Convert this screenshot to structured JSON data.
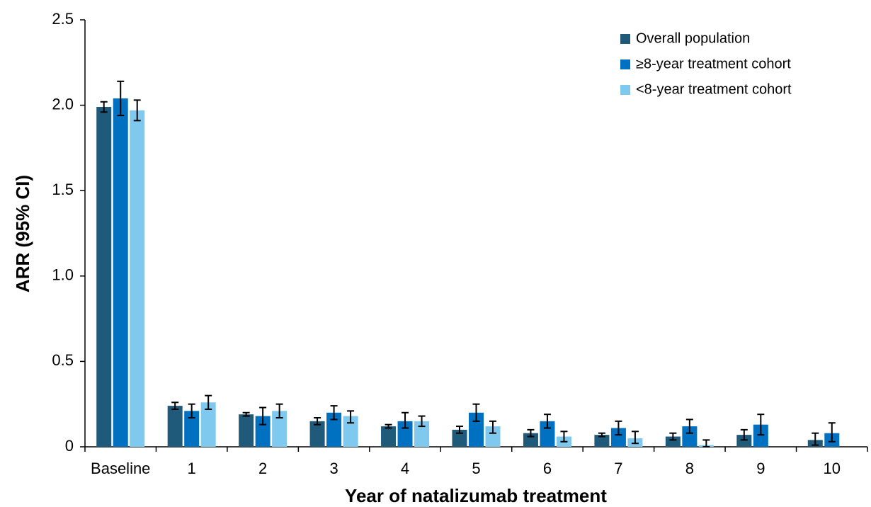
{
  "chart_data": {
    "type": "bar",
    "x_label": "Year of natalizumab treatment",
    "y_label": "ARR (95% CI)",
    "categories": [
      "Baseline",
      "1",
      "2",
      "3",
      "4",
      "5",
      "6",
      "7",
      "8",
      "9",
      "10"
    ],
    "series": [
      {
        "name": "Overall population",
        "color": "#1f5a7a",
        "values": [
          1.99,
          0.24,
          0.19,
          0.15,
          0.12,
          0.1,
          0.08,
          0.07,
          0.06,
          0.07,
          0.04
        ],
        "ci_low": [
          1.96,
          0.22,
          0.18,
          0.13,
          0.11,
          0.08,
          0.06,
          0.06,
          0.04,
          0.04,
          0.01
        ],
        "ci_high": [
          2.02,
          0.26,
          0.2,
          0.17,
          0.13,
          0.12,
          0.1,
          0.08,
          0.08,
          0.1,
          0.08
        ]
      },
      {
        "name": "≥8-year treatment cohort",
        "color": "#0070c0",
        "values": [
          2.04,
          0.21,
          0.18,
          0.2,
          0.15,
          0.2,
          0.15,
          0.11,
          0.12,
          0.13,
          0.08
        ],
        "ci_low": [
          1.94,
          0.17,
          0.13,
          0.16,
          0.11,
          0.15,
          0.11,
          0.07,
          0.08,
          0.07,
          0.03
        ],
        "ci_high": [
          2.14,
          0.25,
          0.23,
          0.24,
          0.2,
          0.25,
          0.19,
          0.15,
          0.16,
          0.19,
          0.14
        ]
      },
      {
        "name": "<8-year treatment cohort",
        "color": "#7fc8ee",
        "values": [
          1.97,
          0.26,
          0.21,
          0.18,
          0.15,
          0.12,
          0.06,
          0.05,
          0.01,
          null,
          null
        ],
        "ci_low": [
          1.91,
          0.22,
          0.17,
          0.14,
          0.12,
          0.08,
          0.03,
          0.02,
          0.0,
          null,
          null
        ],
        "ci_high": [
          2.03,
          0.3,
          0.25,
          0.21,
          0.18,
          0.15,
          0.09,
          0.09,
          0.04,
          null,
          null
        ]
      }
    ],
    "ylim": [
      0,
      2.5
    ],
    "yticks": [
      0,
      {
        "value": 0.5,
        "label": "0.5"
      },
      {
        "value": 1,
        "label": "1.0"
      },
      {
        "value": 1.5,
        "label": "1.5"
      },
      {
        "value": 2,
        "label": "2.0"
      },
      2.5
    ],
    "grid": false,
    "legend": "top-right"
  }
}
